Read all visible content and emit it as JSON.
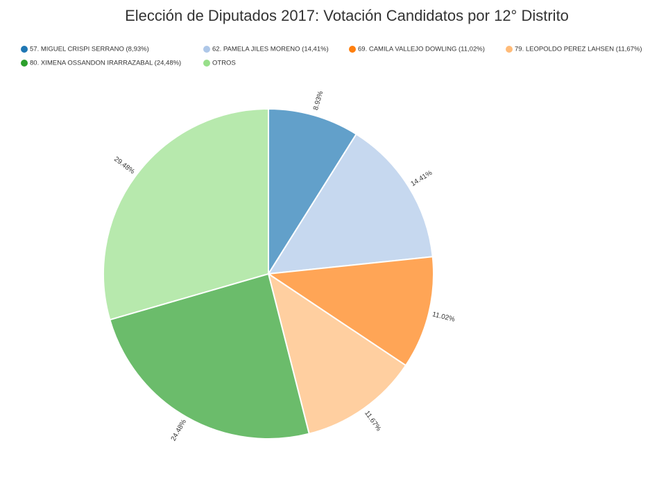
{
  "chart_data": {
    "type": "pie",
    "title": "Elección de Diputados 2017: Votación Candidatos por 12° Distrito",
    "categories": [
      "57. MIGUEL CRISPI SERRANO (8,93%)",
      "62. PAMELA JILES MORENO (14,41%)",
      "69. CAMILA VALLEJO DOWLING (11,02%)",
      "79. LEOPOLDO PEREZ LAHSEN (11,67%)",
      "80. XIMENA OSSANDON IRARRAZABAL (24,48%)",
      "OTROS"
    ],
    "values": [
      8.93,
      14.41,
      11.02,
      11.67,
      24.48,
      29.48
    ],
    "value_labels": [
      "8.93%",
      "14.41%",
      "11.02%",
      "11.67%",
      "24.48%",
      "29.48%"
    ],
    "colors": [
      "#1f77b4",
      "#aec7e8",
      "#ff7f0e",
      "#ffbb78",
      "#2ca02c",
      "#98df8a"
    ]
  }
}
